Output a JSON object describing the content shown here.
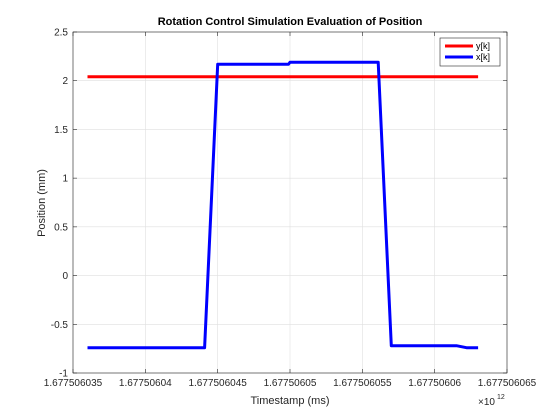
{
  "chart_data": {
    "type": "line",
    "title": "Rotation Control Simulation Evaluation of Position",
    "xlabel": "Timestamp (ms)",
    "ylabel": "Position (mm)",
    "x_exponent": {
      "base": "×10",
      "power": "12"
    },
    "xlim": [
      1.677506035,
      1.677506065
    ],
    "ylim": [
      -1,
      2.5
    ],
    "x_ticks": [
      1.677506035,
      1.67750604,
      1.677506045,
      1.67750605,
      1.677506055,
      1.67750606,
      1.677506065
    ],
    "x_tick_labels": [
      "1.677506035",
      "1.67750604",
      "1.677506045",
      "1.67750605",
      "1.677506055",
      "1.67750606",
      "1.677506065"
    ],
    "y_ticks": [
      -1,
      -0.5,
      0,
      0.5,
      1,
      1.5,
      2,
      2.5
    ],
    "y_tick_labels": [
      "-1",
      "-0.5",
      "0",
      "0.5",
      "1",
      "1.5",
      "2",
      "2.5"
    ],
    "grid": true,
    "legend_position": "top-right",
    "series": [
      {
        "name": "y[k]",
        "color": "#ff0000",
        "x": [
          1.677506036,
          1.677506063
        ],
        "y": [
          2.04,
          2.04
        ]
      },
      {
        "name": "x[k]",
        "color": "#0000ff",
        "x": [
          1.677506036,
          1.6775060441,
          1.677506045,
          1.6775060499,
          1.67750605,
          1.6775060561,
          1.677506057,
          1.6775060615,
          1.6775060622,
          1.677506063
        ],
        "y": [
          -0.74,
          -0.74,
          2.17,
          2.17,
          2.19,
          2.19,
          -0.72,
          -0.72,
          -0.74,
          -0.74
        ]
      }
    ]
  }
}
